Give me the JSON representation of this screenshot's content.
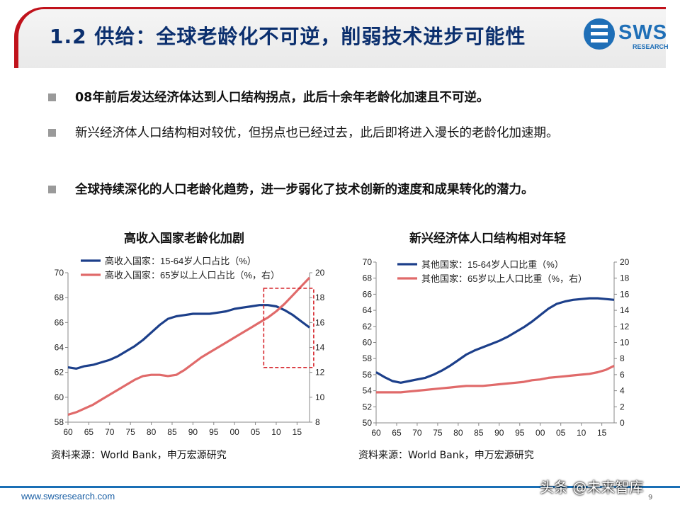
{
  "header": {
    "title": "1.2 供给：全球老龄化不可逆，削弱技术进步可能性",
    "logo_text": "SWS",
    "logo_sub": "RESEARCH"
  },
  "bullets": [
    {
      "text": "08年前后发达经济体达到人口结构拐点，此后十余年老龄化加速且不可逆。",
      "bold": true
    },
    {
      "text": "新兴经济体人口结构相对较优，但拐点也已经过去，此后即将进入漫长的老龄化加速期。",
      "bold": false
    },
    {
      "text": "全球持续深化的人口老龄化趋势，进一步弱化了技术创新的速度和成果转化的潜力。",
      "bold": true
    }
  ],
  "chart_data": [
    {
      "type": "line",
      "title": "高收入国家老龄化加剧",
      "x": [
        60,
        62,
        64,
        66,
        68,
        70,
        72,
        74,
        76,
        78,
        80,
        82,
        84,
        86,
        88,
        90,
        92,
        94,
        96,
        98,
        100,
        102,
        104,
        106,
        108,
        110,
        112,
        114,
        116,
        118
      ],
      "x_ticks": [
        "60",
        "65",
        "70",
        "75",
        "80",
        "85",
        "90",
        "95",
        "00",
        "05",
        "10",
        "15"
      ],
      "y_left": {
        "min": 58,
        "max": 70,
        "ticks": [
          58,
          60,
          62,
          64,
          66,
          68,
          70
        ]
      },
      "y_right": {
        "min": 8,
        "max": 20,
        "ticks": [
          8,
          10,
          12,
          14,
          16,
          18,
          20
        ]
      },
      "series": [
        {
          "name": "高收入国家：15-64岁人口占比（%）",
          "axis": "left",
          "color": "#1c3f8a",
          "values": [
            62.4,
            62.3,
            62.5,
            62.6,
            62.8,
            63.0,
            63.3,
            63.7,
            64.1,
            64.6,
            65.2,
            65.8,
            66.3,
            66.5,
            66.6,
            66.7,
            66.7,
            66.7,
            66.8,
            66.9,
            67.1,
            67.2,
            67.3,
            67.4,
            67.4,
            67.3,
            67.0,
            66.6,
            66.1,
            65.6
          ]
        },
        {
          "name": "高收入国家：65岁以上人口占比（%，右）",
          "axis": "right",
          "color": "#e06a6a",
          "values": [
            8.6,
            8.8,
            9.1,
            9.4,
            9.8,
            10.2,
            10.6,
            11.0,
            11.4,
            11.7,
            11.8,
            11.8,
            11.7,
            11.8,
            12.2,
            12.7,
            13.2,
            13.6,
            14.0,
            14.4,
            14.8,
            15.2,
            15.6,
            16.0,
            16.4,
            16.9,
            17.5,
            18.2,
            18.9,
            19.6
          ]
        }
      ],
      "annotation": "dashed red box highlighting 08-18",
      "source": "资料来源：World Bank，申万宏源研究"
    },
    {
      "type": "line",
      "title": "新兴经济体人口结构相对年轻",
      "x": [
        60,
        62,
        64,
        66,
        68,
        70,
        72,
        74,
        76,
        78,
        80,
        82,
        84,
        86,
        88,
        90,
        92,
        94,
        96,
        98,
        100,
        102,
        104,
        106,
        108,
        110,
        112,
        114,
        116,
        118
      ],
      "x_ticks": [
        "60",
        "65",
        "70",
        "75",
        "80",
        "85",
        "90",
        "95",
        "00",
        "05",
        "10",
        "15"
      ],
      "y_left": {
        "min": 50,
        "max": 70,
        "ticks": [
          50,
          52,
          54,
          56,
          58,
          60,
          62,
          64,
          66,
          68,
          70
        ]
      },
      "y_right": {
        "min": 0,
        "max": 20,
        "ticks": [
          0,
          2,
          4,
          6,
          8,
          10,
          12,
          14,
          16,
          18,
          20
        ]
      },
      "series": [
        {
          "name": "其他国家：15-64岁人口比重（%）",
          "axis": "left",
          "color": "#1c3f8a",
          "values": [
            56.3,
            55.7,
            55.2,
            55.0,
            55.2,
            55.4,
            55.6,
            56.0,
            56.5,
            57.1,
            57.8,
            58.5,
            59.0,
            59.4,
            59.8,
            60.2,
            60.7,
            61.3,
            61.9,
            62.6,
            63.4,
            64.2,
            64.8,
            65.1,
            65.3,
            65.4,
            65.5,
            65.5,
            65.4,
            65.3
          ]
        },
        {
          "name": "其他国家：65岁以上人口比重（%，右）",
          "axis": "right",
          "color": "#e06a6a",
          "values": [
            3.8,
            3.8,
            3.8,
            3.8,
            3.9,
            4.0,
            4.1,
            4.2,
            4.3,
            4.4,
            4.5,
            4.6,
            4.6,
            4.6,
            4.7,
            4.8,
            4.9,
            5.0,
            5.1,
            5.3,
            5.4,
            5.6,
            5.7,
            5.8,
            5.9,
            6.0,
            6.1,
            6.3,
            6.6,
            7.1
          ]
        }
      ],
      "source": "资料来源：World Bank，申万宏源研究"
    }
  ],
  "footer": {
    "url": "www.swsresearch.com",
    "page": "9",
    "watermark": "头条 @未来智库"
  }
}
